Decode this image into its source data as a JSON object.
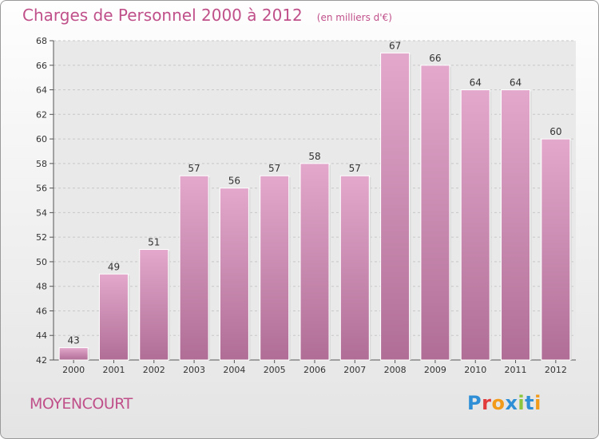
{
  "chart_data": {
    "type": "bar",
    "title": "Charges de Personnel 2000 à 2012",
    "subtitle": "(en milliers d'€)",
    "categories": [
      "2000",
      "2001",
      "2002",
      "2003",
      "2004",
      "2005",
      "2006",
      "2007",
      "2008",
      "2009",
      "2010",
      "2011",
      "2012"
    ],
    "values": [
      43,
      49,
      51,
      57,
      56,
      57,
      58,
      57,
      67,
      66,
      64,
      64,
      60
    ],
    "ylim": [
      42,
      68
    ],
    "yticks": [
      42,
      44,
      46,
      48,
      50,
      52,
      54,
      56,
      58,
      60,
      62,
      64,
      66,
      68
    ],
    "grid": true,
    "bar_color_top": "#e3a8cc",
    "bar_color_bottom": "#b06e96"
  },
  "commune": "MOYENCOURT",
  "logo": {
    "text": "Proxiti",
    "letters": [
      {
        "ch": "P",
        "color": "#2e8fd6"
      },
      {
        "ch": "r",
        "color": "#e23b3b"
      },
      {
        "ch": "o",
        "color": "#f29a1a"
      },
      {
        "ch": "x",
        "color": "#2e8fd6"
      },
      {
        "ch": "i",
        "color": "#8cc63f"
      },
      {
        "ch": "t",
        "color": "#2e8fd6"
      },
      {
        "ch": "i",
        "color": "#f29a1a"
      }
    ]
  },
  "colors": {
    "accent": "#c0508a",
    "axis_text": "#333333",
    "grid": "#c8c8c8"
  }
}
